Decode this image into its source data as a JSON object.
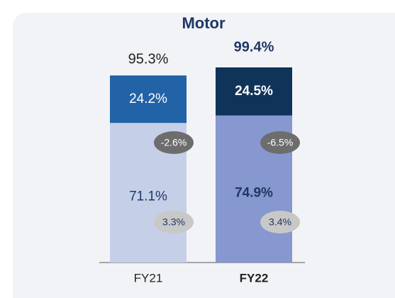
{
  "chart_data": {
    "type": "stacked-bar",
    "title": "Motor",
    "categories": [
      "FY21",
      "FY22"
    ],
    "bold_categories": [
      false,
      true
    ],
    "series": [
      {
        "colors": [
          "#c5cfe8",
          "#8797cf"
        ],
        "values": [
          71.1,
          74.9
        ],
        "value_labels": [
          "71.1%",
          "74.9%"
        ]
      },
      {
        "colors": [
          "#2262a6",
          "#10335a"
        ],
        "values": [
          24.2,
          24.5
        ],
        "value_labels": [
          "24.2%",
          "24.5%"
        ]
      }
    ],
    "totals": [
      95.3,
      99.4
    ],
    "total_labels": [
      "95.3%",
      "99.4%"
    ],
    "annotations": [
      "-2.6%",
      "-6.5%",
      "3.3%",
      "3.4%"
    ]
  }
}
